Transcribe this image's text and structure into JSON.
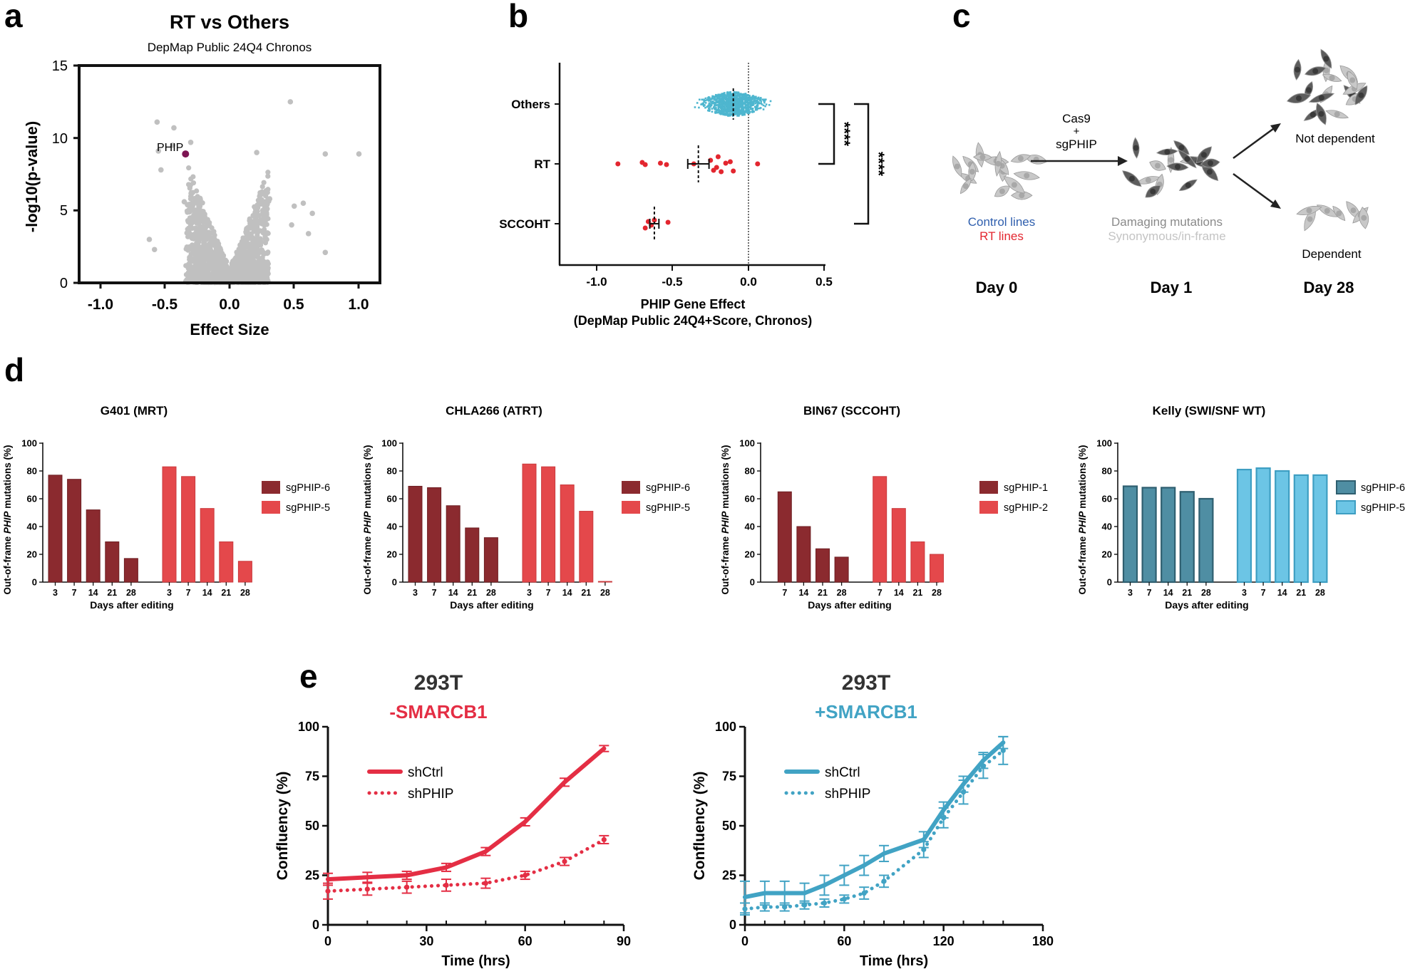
{
  "panel_labels": {
    "a": "a",
    "b": "b",
    "c": "c",
    "d": "d",
    "e": "e"
  },
  "colors": {
    "dark_red": "#8b2a2f",
    "red": "#e4484b",
    "fg_red": "#e42e44",
    "teal_dark": "#4f8ea3",
    "teal_light": "#6cc5e5",
    "teal_line": "#41a3c4",
    "grey": "#c0c0c0",
    "purple": "#7d1553",
    "others_dot": "#4eb6cf",
    "rt_dot": "#e3262f",
    "cell_grey": "#c8c8c8",
    "cell_dark": "#5d5d5d",
    "blue_text": "#2f5fae",
    "red_text": "#e3262f"
  },
  "volcano": {
    "title": "RT vs Others",
    "subtitle": "DepMap Public 24Q4 Chronos",
    "xlabel": "Effect Size",
    "ylabel": "-log10(p-value)",
    "xticks": [
      "-1.0",
      "-0.5",
      "0.0",
      "0.5",
      "1.0"
    ],
    "yticks": [
      "0",
      "5",
      "10",
      "15"
    ],
    "highlight_label": "PHIP"
  },
  "dotplot": {
    "xlabel_line1": "PHIP Gene Effect",
    "xlabel_line2": "(DepMap Public 24Q4+Score, Chronos)",
    "xticks": [
      "-1.0",
      "-0.5",
      "0.0",
      "0.5"
    ],
    "groups": [
      "Others",
      "RT",
      "SCCOHT"
    ],
    "sig1": "****",
    "sig2": "****"
  },
  "schematic": {
    "control_lines": "Control lines",
    "rt_lines": "RT lines",
    "arrow_label_1": "Cas9",
    "arrow_label_2": "+",
    "arrow_label_3": "sgPHIP",
    "damaging": "Damaging mutations",
    "synonymous": "Synonymous/in-frame",
    "not_dependent": "Not dependent",
    "dependent": "Dependent",
    "day0": "Day 0",
    "day1": "Day 1",
    "day28": "Day 28"
  },
  "bar_common": {
    "ylabel_pre": "Out-of-frame ",
    "ylabel_gene": "PHIP",
    "ylabel_post": " mutations (%)",
    "xlabel": "Days after editing",
    "yticks": [
      "0",
      "20",
      "40",
      "60",
      "80",
      "100"
    ]
  },
  "line_common": {
    "ylabel": "Confluency (%)",
    "xlabel": "Time (hrs)",
    "yticks": [
      "0",
      "25",
      "50",
      "75",
      "100"
    ],
    "legend": [
      "shCtrl",
      "shPHIP"
    ]
  },
  "chart_data": [
    {
      "type": "scatter",
      "panel": "a",
      "title": "RT vs Others",
      "subtitle": "DepMap Public 24Q4 Chronos",
      "xlabel": "Effect Size",
      "ylabel": "-log10(p-value)",
      "xlim": [
        -1.2,
        1.2
      ],
      "ylim": [
        0,
        15
      ],
      "highlight": {
        "name": "PHIP",
        "x": -0.34,
        "y": 8.9
      },
      "notable_points": [
        {
          "x": -0.56,
          "y": 11.1
        },
        {
          "x": -0.43,
          "y": 10.7
        },
        {
          "x": -0.3,
          "y": 9.7
        },
        {
          "x": -0.44,
          "y": 9.5
        },
        {
          "x": -0.55,
          "y": 9.1
        },
        {
          "x": -0.53,
          "y": 7.8
        },
        {
          "x": 0.47,
          "y": 12.5
        },
        {
          "x": 0.21,
          "y": 9.0
        },
        {
          "x": 0.74,
          "y": 8.9
        },
        {
          "x": 1.0,
          "y": 8.9
        },
        {
          "x": 0.57,
          "y": 5.5
        },
        {
          "x": 0.64,
          "y": 4.8
        },
        {
          "x": 0.48,
          "y": 4.0
        },
        {
          "x": 0.61,
          "y": 3.4
        },
        {
          "x": 0.74,
          "y": 2.1
        },
        {
          "x": -0.62,
          "y": 3.0
        },
        {
          "x": -0.58,
          "y": 2.3
        },
        {
          "x": 0.5,
          "y": 5.3
        },
        {
          "x": -0.35,
          "y": 5.6
        },
        {
          "x": 0.31,
          "y": 5.8
        }
      ]
    },
    {
      "type": "scatter",
      "panel": "b",
      "xlabel": "PHIP Gene Effect (DepMap Public 24Q4+Score, Chronos)",
      "xlim": [
        -1.25,
        0.6
      ],
      "categories": [
        "Others",
        "RT",
        "SCCOHT"
      ],
      "others_median": -0.1,
      "rt_values": [
        -0.86,
        -0.7,
        -0.68,
        -0.58,
        -0.54,
        -0.36,
        -0.25,
        -0.23,
        -0.21,
        -0.2,
        -0.18,
        -0.15,
        -0.12,
        -0.1,
        0.06
      ],
      "rt_mean": -0.33,
      "rt_sem": 0.07,
      "sccoht_values": [
        -0.68,
        -0.66,
        -0.64,
        -0.62,
        -0.53
      ],
      "sccoht_mean": -0.62,
      "sccoht_sem": 0.03,
      "significance": [
        {
          "pair": [
            "Others",
            "RT"
          ],
          "label": "****"
        },
        {
          "pair": [
            "Others",
            "SCCOHT"
          ],
          "label": "****"
        }
      ]
    },
    {
      "type": "bar",
      "panel": "d1",
      "title": "G401 (MRT)",
      "ylabel": "Out-of-frame PHIP mutations (%)",
      "xlabel": "Days after editing",
      "ylim": [
        0,
        100
      ],
      "series": [
        {
          "name": "sgPHIP-6",
          "categories": [
            "3",
            "7",
            "14",
            "21",
            "28"
          ],
          "values": [
            77,
            74,
            52,
            29,
            17
          ]
        },
        {
          "name": "sgPHIP-5",
          "categories": [
            "3",
            "7",
            "14",
            "21",
            "28"
          ],
          "values": [
            83,
            76,
            53,
            29,
            15
          ]
        }
      ]
    },
    {
      "type": "bar",
      "panel": "d2",
      "title": "CHLA266 (ATRT)",
      "ylabel": "Out-of-frame PHIP mutations (%)",
      "xlabel": "Days after editing",
      "ylim": [
        0,
        100
      ],
      "series": [
        {
          "name": "sgPHIP-6",
          "categories": [
            "3",
            "7",
            "14",
            "21",
            "28"
          ],
          "values": [
            69,
            68,
            55,
            39,
            32
          ]
        },
        {
          "name": "sgPHIP-5",
          "categories": [
            "3",
            "7",
            "14",
            "21",
            "28"
          ],
          "values": [
            85,
            83,
            70,
            51,
            0.5
          ]
        }
      ]
    },
    {
      "type": "bar",
      "panel": "d3",
      "title": "BIN67 (SCCOHT)",
      "ylabel": "Out-of-frame PHIP mutations (%)",
      "xlabel": "Days after editing",
      "ylim": [
        0,
        100
      ],
      "series": [
        {
          "name": "sgPHIP-1",
          "categories": [
            "7",
            "14",
            "21",
            "28"
          ],
          "values": [
            65,
            40,
            24,
            18
          ]
        },
        {
          "name": "sgPHIP-2",
          "categories": [
            "7",
            "14",
            "21",
            "28"
          ],
          "values": [
            76,
            53,
            29,
            20
          ]
        }
      ]
    },
    {
      "type": "bar",
      "panel": "d4",
      "title": "Kelly (SWI/SNF WT)",
      "ylabel": "Out-of-frame PHIP mutations (%)",
      "xlabel": "Days after editing",
      "ylim": [
        0,
        100
      ],
      "series": [
        {
          "name": "sgPHIP-6",
          "categories": [
            "3",
            "7",
            "14",
            "21",
            "28"
          ],
          "values": [
            69,
            68,
            68,
            65,
            60
          ]
        },
        {
          "name": "sgPHIP-5",
          "categories": [
            "3",
            "7",
            "14",
            "21",
            "28"
          ],
          "values": [
            81,
            82,
            80,
            77,
            77
          ]
        }
      ]
    },
    {
      "type": "line",
      "panel": "e1",
      "title": "293T",
      "subtitle": "-SMARCB1",
      "xlabel": "Time (hrs)",
      "ylabel": "Confluency (%)",
      "xlim": [
        0,
        90
      ],
      "ylim": [
        0,
        100
      ],
      "xticks": [
        "0",
        "30",
        "60",
        "90"
      ],
      "series": [
        {
          "name": "shCtrl",
          "x": [
            0,
            12,
            24,
            36,
            48,
            60,
            72,
            84
          ],
          "y": [
            23,
            24,
            25,
            29,
            37,
            52,
            72,
            89
          ],
          "err": [
            3,
            2.5,
            2,
            2,
            2,
            2,
            2,
            1.5
          ]
        },
        {
          "name": "shPHIP",
          "x": [
            0,
            12,
            24,
            36,
            48,
            60,
            72,
            84
          ],
          "y": [
            17,
            18,
            19,
            20,
            21,
            25,
            32,
            43
          ],
          "err": [
            4,
            3,
            3,
            3,
            2.5,
            2,
            2,
            2
          ]
        }
      ]
    },
    {
      "type": "line",
      "panel": "e2",
      "title": "293T",
      "subtitle": "+SMARCB1",
      "xlabel": "Time (hrs)",
      "ylabel": "Confluency (%)",
      "xlim": [
        0,
        180
      ],
      "ylim": [
        0,
        100
      ],
      "xticks": [
        "0",
        "60",
        "120",
        "180"
      ],
      "series": [
        {
          "name": "shCtrl",
          "x": [
            0,
            12,
            24,
            36,
            48,
            60,
            72,
            84,
            108,
            120,
            132,
            144,
            156
          ],
          "y": [
            14,
            16,
            16,
            16,
            20,
            25,
            30,
            36,
            43,
            58,
            71,
            83,
            92
          ],
          "err": [
            8,
            6,
            6,
            5,
            5,
            5,
            5,
            4,
            4,
            4,
            4,
            4,
            3
          ]
        },
        {
          "name": "shPHIP",
          "x": [
            0,
            12,
            24,
            36,
            48,
            60,
            72,
            84,
            108,
            120,
            132,
            144,
            156
          ],
          "y": [
            8,
            9,
            9,
            10,
            11,
            13,
            16,
            22,
            38,
            54,
            67,
            80,
            88
          ],
          "err": [
            3,
            2,
            2,
            2,
            2,
            2,
            3,
            3,
            4,
            5,
            6,
            6,
            7
          ]
        }
      ]
    }
  ]
}
